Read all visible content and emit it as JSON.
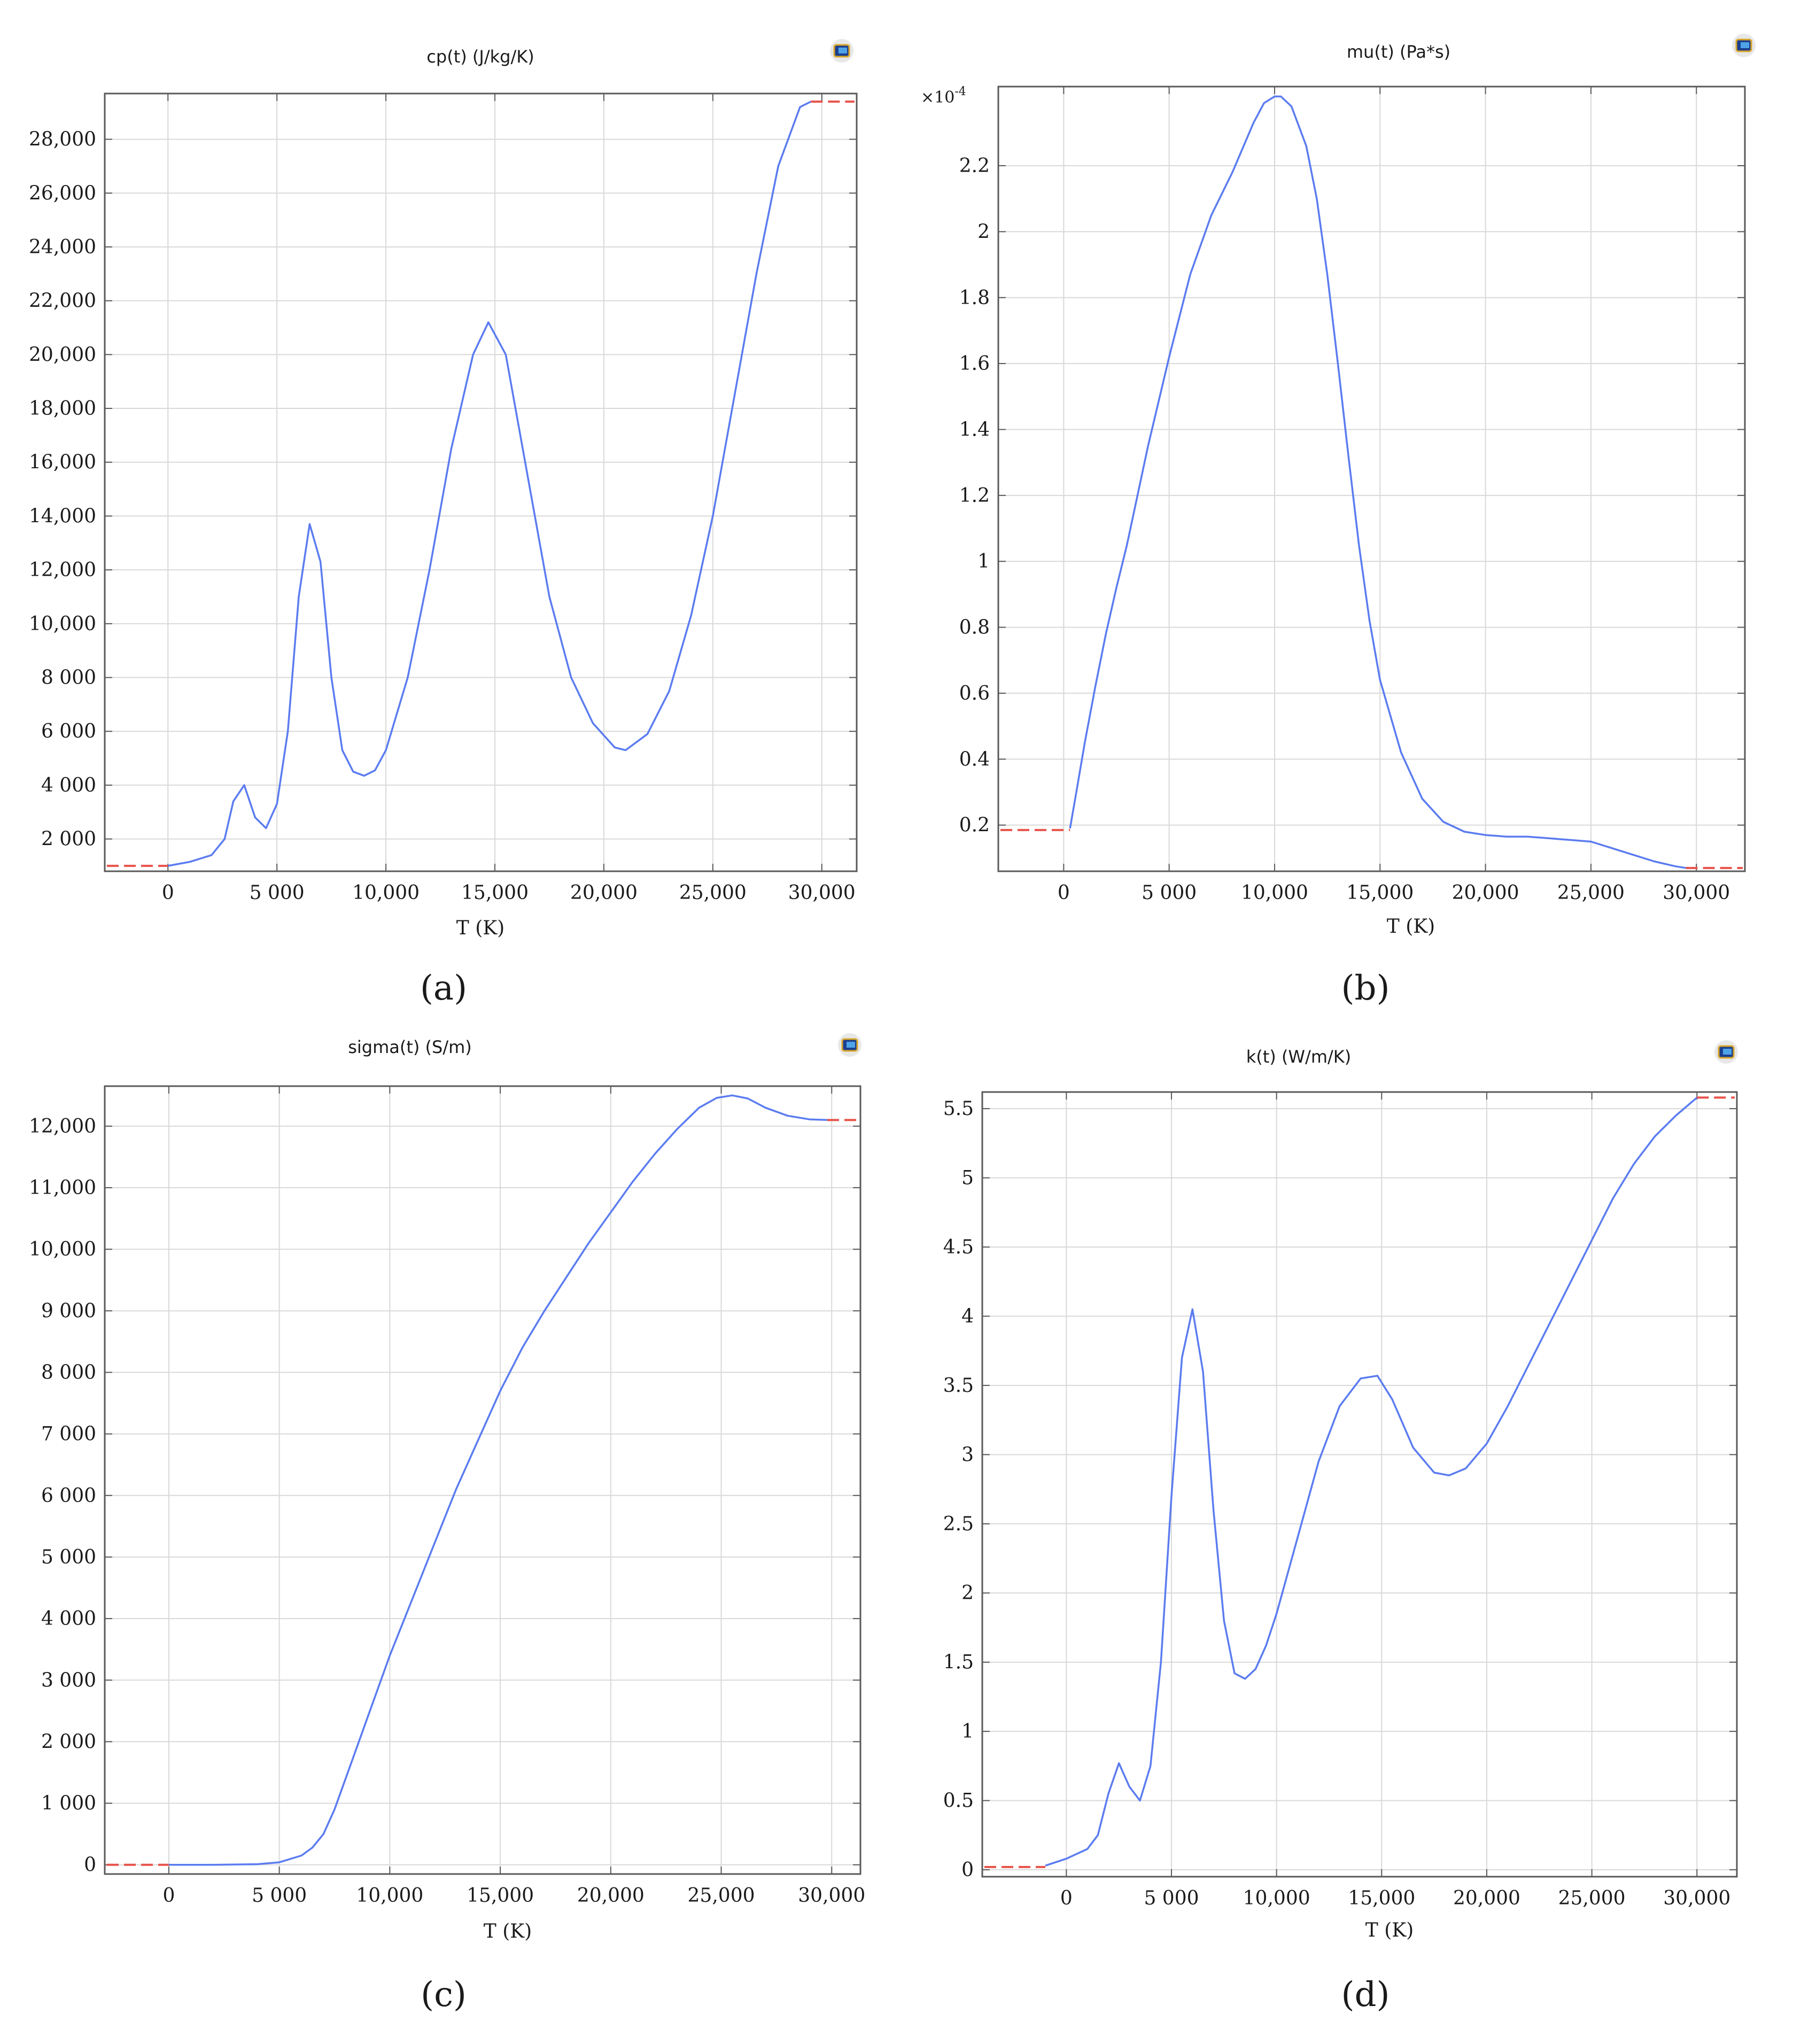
{
  "colors": {
    "series": "#5b7cf0",
    "extrapolation": "#e8534a",
    "axis": "#5a5a5a",
    "grid": "#d9d9d9",
    "text": "#1a1a1a"
  },
  "icon": "comsol-plot-icon",
  "chart_data": [
    {
      "type": "line",
      "panel_label": "(a)",
      "title": "cp(t) (J/kg/K)",
      "xlabel": "T (K)",
      "ylabel": "",
      "xlim": [
        -2900,
        31600
      ],
      "ylim": [
        800,
        29700
      ],
      "grid": true,
      "xticks": [
        0,
        5000,
        10000,
        15000,
        20000,
        25000,
        30000
      ],
      "xtick_labels": [
        "0",
        "5 000",
        "10,000",
        "15,000",
        "20,000",
        "25,000",
        "30,000"
      ],
      "yticks": [
        2000,
        4000,
        6000,
        8000,
        10000,
        12000,
        14000,
        16000,
        18000,
        20000,
        22000,
        24000,
        26000,
        28000
      ],
      "ytick_labels": [
        "2 000",
        "4 000",
        "6 000",
        "8 000",
        "10,000",
        "12,000",
        "14,000",
        "16,000",
        "18,000",
        "20,000",
        "22,000",
        "24,000",
        "26,000",
        "28,000"
      ],
      "series": [
        {
          "x": [
            0,
            1000,
            2000,
            2600,
            3000,
            3500,
            4000,
            4500,
            5000,
            5500,
            6000,
            6500,
            7000,
            7500,
            8000,
            8500,
            9000,
            9500,
            10000,
            11000,
            12000,
            13000,
            14000,
            14700,
            15500,
            16500,
            17500,
            18500,
            19500,
            20500,
            21000,
            22000,
            23000,
            24000,
            25000,
            26000,
            27000,
            28000,
            29000,
            29500
          ],
          "y": [
            1000,
            1150,
            1400,
            2000,
            3400,
            4000,
            2800,
            2400,
            3300,
            6000,
            11000,
            13700,
            12300,
            8000,
            5300,
            4500,
            4350,
            4550,
            5300,
            8000,
            12000,
            16500,
            20000,
            21200,
            20000,
            15500,
            11000,
            8000,
            6300,
            5400,
            5300,
            5900,
            7500,
            10300,
            14000,
            18500,
            23000,
            27000,
            29200,
            29400
          ]
        }
      ],
      "extrapolation": {
        "left": 1000,
        "right": 29400
      }
    },
    {
      "type": "line",
      "panel_label": "(b)",
      "title": "mu(t) (Pa*s)",
      "xlabel": "T (K)",
      "ylabel": "",
      "y_multiplier": "×10",
      "y_multiplier_exp": "-4",
      "xlim": [
        -3100,
        32300
      ],
      "ylim": [
        0.06,
        2.44
      ],
      "grid": true,
      "xticks": [
        0,
        5000,
        10000,
        15000,
        20000,
        25000,
        30000
      ],
      "xtick_labels": [
        "0",
        "5 000",
        "10,000",
        "15,000",
        "20,000",
        "25,000",
        "30,000"
      ],
      "yticks": [
        0.2,
        0.4,
        0.6,
        0.8,
        1,
        1.2,
        1.4,
        1.6,
        1.8,
        2,
        2.2
      ],
      "ytick_labels": [
        "0.2",
        "0.4",
        "0.6",
        "0.8",
        "1",
        "1.2",
        "1.4",
        "1.6",
        "1.8",
        "2",
        "2.2"
      ],
      "series": [
        {
          "x": [
            300,
            600,
            1000,
            1500,
            2000,
            2500,
            3000,
            4000,
            5000,
            6000,
            7000,
            8000,
            9000,
            9500,
            10000,
            10300,
            10800,
            11500,
            12000,
            12500,
            13000,
            13500,
            14000,
            14500,
            15000,
            16000,
            17000,
            18000,
            19000,
            20000,
            21000,
            22000,
            23000,
            24000,
            25000,
            26000,
            27000,
            28000,
            29000,
            29500
          ],
          "y": [
            0.19,
            0.3,
            0.45,
            0.62,
            0.78,
            0.92,
            1.05,
            1.35,
            1.62,
            1.87,
            2.05,
            2.18,
            2.33,
            2.39,
            2.41,
            2.41,
            2.38,
            2.26,
            2.1,
            1.87,
            1.6,
            1.32,
            1.05,
            0.82,
            0.64,
            0.42,
            0.28,
            0.21,
            0.18,
            0.17,
            0.165,
            0.165,
            0.16,
            0.155,
            0.15,
            0.13,
            0.11,
            0.09,
            0.075,
            0.07
          ]
        }
      ],
      "extrapolation": {
        "left": 0.185,
        "right": 0.07
      }
    },
    {
      "type": "line",
      "panel_label": "(c)",
      "title": "sigma(t) (S/m)",
      "xlabel": "T (K)",
      "ylabel": "",
      "xlim": [
        -2900,
        31300
      ],
      "ylim": [
        -150,
        12650
      ],
      "grid": true,
      "xticks": [
        0,
        5000,
        10000,
        15000,
        20000,
        25000,
        30000
      ],
      "xtick_labels": [
        "0",
        "5 000",
        "10,000",
        "15,000",
        "20,000",
        "25,000",
        "30,000"
      ],
      "yticks": [
        0,
        1000,
        2000,
        3000,
        4000,
        5000,
        6000,
        7000,
        8000,
        9000,
        10000,
        11000,
        12000
      ],
      "ytick_labels": [
        "0",
        "1 000",
        "2 000",
        "3 000",
        "4 000",
        "5 000",
        "6 000",
        "7 000",
        "8 000",
        "9 000",
        "10,000",
        "11,000",
        "12,000"
      ],
      "series": [
        {
          "x": [
            0,
            2000,
            4000,
            5000,
            6000,
            6500,
            7000,
            7500,
            8000,
            9000,
            10000,
            11000,
            12000,
            13000,
            14000,
            15000,
            16000,
            17000,
            18000,
            19000,
            20000,
            21000,
            22000,
            23000,
            24000,
            24800,
            25500,
            26200,
            27000,
            28000,
            29000,
            29800
          ],
          "y": [
            0,
            0,
            10,
            40,
            150,
            280,
            500,
            900,
            1400,
            2400,
            3400,
            4300,
            5200,
            6100,
            6900,
            7700,
            8400,
            9000,
            9550,
            10100,
            10600,
            11100,
            11550,
            11950,
            12300,
            12460,
            12500,
            12450,
            12300,
            12170,
            12110,
            12100
          ]
        }
      ],
      "extrapolation": {
        "left": 0,
        "right": 12100
      }
    },
    {
      "type": "line",
      "panel_label": "(d)",
      "title": "k(t) (W/m/K)",
      "xlabel": "T (K)",
      "ylabel": "",
      "xlim": [
        -4000,
        31900
      ],
      "ylim": [
        -0.05,
        5.62
      ],
      "grid": true,
      "xticks": [
        0,
        5000,
        10000,
        15000,
        20000,
        25000,
        30000
      ],
      "xtick_labels": [
        "0",
        "5 000",
        "10,000",
        "15,000",
        "20,000",
        "25,000",
        "30,000"
      ],
      "yticks": [
        0,
        0.5,
        1,
        1.5,
        2,
        2.5,
        3,
        3.5,
        4,
        4.5,
        5,
        5.5
      ],
      "ytick_labels": [
        "0",
        "0.5",
        "1",
        "1.5",
        "2",
        "2.5",
        "3",
        "3.5",
        "4",
        "4.5",
        "5",
        "5.5"
      ],
      "series": [
        {
          "x": [
            -1000,
            0,
            1000,
            1500,
            2000,
            2500,
            3000,
            3500,
            4000,
            4500,
            5000,
            5500,
            6000,
            6500,
            7000,
            7500,
            8000,
            8500,
            9000,
            9500,
            10000,
            11000,
            12000,
            13000,
            14000,
            14800,
            15500,
            16500,
            17500,
            18200,
            19000,
            20000,
            21000,
            22000,
            23000,
            24000,
            25000,
            26000,
            27000,
            28000,
            29000,
            30000
          ],
          "y": [
            0.03,
            0.08,
            0.15,
            0.25,
            0.55,
            0.77,
            0.6,
            0.5,
            0.75,
            1.5,
            2.7,
            3.7,
            4.05,
            3.6,
            2.6,
            1.8,
            1.42,
            1.38,
            1.45,
            1.62,
            1.85,
            2.4,
            2.95,
            3.35,
            3.55,
            3.57,
            3.4,
            3.05,
            2.87,
            2.85,
            2.9,
            3.08,
            3.35,
            3.65,
            3.95,
            4.25,
            4.55,
            4.85,
            5.1,
            5.3,
            5.45,
            5.58
          ]
        }
      ],
      "extrapolation": {
        "left": 0.02,
        "right": 5.58
      }
    }
  ]
}
